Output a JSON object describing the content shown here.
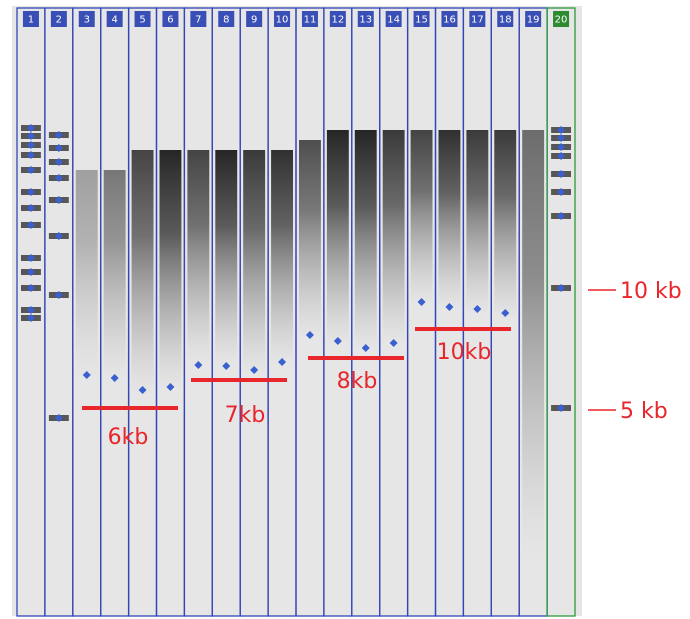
{
  "lanes": [
    "1",
    "2",
    "3",
    "4",
    "5",
    "6",
    "7",
    "8",
    "9",
    "10",
    "11",
    "12",
    "13",
    "14",
    "15",
    "16",
    "17",
    "18",
    "19",
    "20"
  ],
  "size_labels": [
    "6kb",
    "7kb",
    "8kb",
    "10kb"
  ],
  "marker_labels": [
    "10 kb",
    "5 kb"
  ]
}
